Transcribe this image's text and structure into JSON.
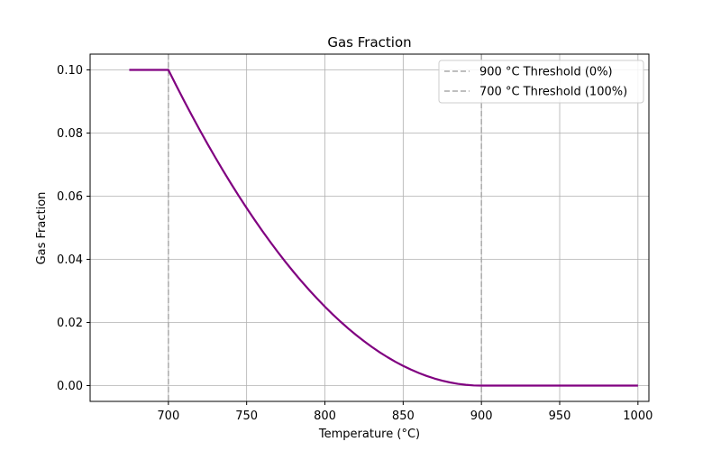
{
  "chart_data": {
    "type": "line",
    "title": "Gas Fraction",
    "xlabel": "Temperature (°C)",
    "ylabel": "Gas Fraction",
    "xlim": [
      650,
      1007
    ],
    "ylim": [
      -0.005,
      0.105
    ],
    "xticks": [
      700,
      750,
      800,
      850,
      900,
      950,
      1000
    ],
    "xtick_labels": [
      "700",
      "750",
      "800",
      "850",
      "900",
      "950",
      "1000"
    ],
    "yticks": [
      0.0,
      0.02,
      0.04,
      0.06,
      0.08,
      0.1
    ],
    "ytick_labels": [
      "0.00",
      "0.02",
      "0.04",
      "0.06",
      "0.08",
      "0.10"
    ],
    "grid": true,
    "legend_position": "top-right",
    "series": [
      {
        "color": "#800080",
        "x": [
          675,
          680,
          685,
          690,
          695,
          700,
          705,
          710,
          715,
          720,
          725,
          730,
          735,
          740,
          745,
          750,
          755,
          760,
          765,
          770,
          775,
          780,
          785,
          790,
          795,
          800,
          805,
          810,
          815,
          820,
          825,
          830,
          835,
          840,
          845,
          850,
          855,
          860,
          865,
          870,
          875,
          880,
          885,
          890,
          895,
          900,
          910,
          920,
          930,
          940,
          950,
          960,
          970,
          980,
          990,
          1000
        ],
        "y": [
          0.1,
          0.1,
          0.1,
          0.1,
          0.1,
          0.1,
          0.09506,
          0.09025,
          0.08556,
          0.081,
          0.07656,
          0.07225,
          0.06806,
          0.064,
          0.06006,
          0.05625,
          0.05256,
          0.049,
          0.04556,
          0.04225,
          0.03906,
          0.036,
          0.03306,
          0.03025,
          0.02756,
          0.025,
          0.02256,
          0.02025,
          0.01806,
          0.016,
          0.01406,
          0.01225,
          0.01056,
          0.009,
          0.00756,
          0.00625,
          0.00506,
          0.004,
          0.00306,
          0.00225,
          0.00156,
          0.001,
          0.00056,
          0.00025,
          6e-05,
          0.0,
          0.0,
          0.0,
          0.0,
          0.0,
          0.0,
          0.0,
          0.0,
          0.0,
          0.0,
          0.0
        ]
      }
    ],
    "reference_lines": [
      {
        "x": 900,
        "label": "900 °C Threshold (0%)",
        "color": "#aaaaaa",
        "style": "dashed"
      },
      {
        "x": 700,
        "label": "700 °C Threshold (100%)",
        "color": "#aaaaaa",
        "style": "dashed"
      }
    ],
    "colors": {
      "grid": "#b0b0b0",
      "axes": "#000000",
      "background": "#ffffff"
    }
  }
}
